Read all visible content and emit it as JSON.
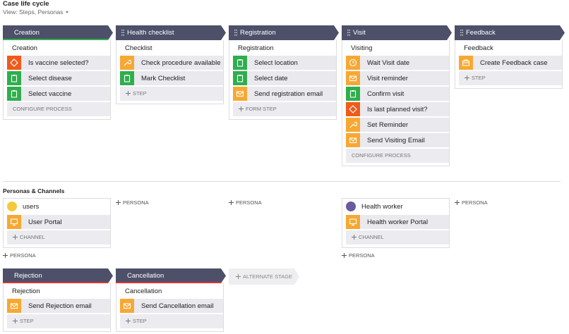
{
  "header": {
    "title": "Case life cycle",
    "view": "View: Steps, Personas"
  },
  "stages": [
    {
      "name": "Creation",
      "active": true,
      "process": "Creation",
      "steps": [
        {
          "label": "Is vaccine selected?",
          "icon": "diamond"
        },
        {
          "label": "Select disease",
          "icon": "clipboard"
        },
        {
          "label": "Select vaccine",
          "icon": "clipboard"
        }
      ],
      "action": "CONFIGURE PROCESS"
    },
    {
      "name": "Health checklist",
      "active": false,
      "process": "Checklist",
      "steps": [
        {
          "label": "Check procedure available",
          "icon": "wrench"
        },
        {
          "label": "Mark Checklist",
          "icon": "clipboard"
        }
      ],
      "action": "STEP"
    },
    {
      "name": "Registration",
      "active": false,
      "process": "Registration",
      "steps": [
        {
          "label": "Select location",
          "icon": "clipboard"
        },
        {
          "label": "Select date",
          "icon": "clipboard"
        },
        {
          "label": "Send registration email",
          "icon": "mail"
        }
      ],
      "action": "FORM STEP"
    },
    {
      "name": "Visit",
      "active": false,
      "process": "Visiting",
      "steps": [
        {
          "label": "Wait Visit date",
          "icon": "clock"
        },
        {
          "label": "Visit reminder",
          "icon": "mail"
        },
        {
          "label": "Confirm visit",
          "icon": "clipboard"
        },
        {
          "label": "Is last planned visit?",
          "icon": "diamond"
        },
        {
          "label": "Set Reminder",
          "icon": "wrench"
        },
        {
          "label": "Send Visiting Email",
          "icon": "mail"
        }
      ],
      "action": "CONFIGURE PROCESS"
    },
    {
      "name": "Feedback",
      "active": false,
      "process": "Feedback",
      "steps": [
        {
          "label": "Create Feedback case",
          "icon": "case"
        }
      ],
      "action": "STEP"
    }
  ],
  "personas_title": "Personas & Channels",
  "persona_columns": [
    {
      "personas": [
        {
          "name": "users",
          "avatar": "yellow",
          "channels": [
            "User Portal"
          ]
        }
      ]
    },
    {
      "personas": []
    },
    {
      "personas": []
    },
    {
      "personas": [
        {
          "name": "Health worker",
          "avatar": "purple",
          "channels": [
            "Health worker Portal"
          ]
        }
      ]
    },
    {
      "personas": []
    }
  ],
  "add_channel": "CHANNEL",
  "add_persona": "PERSONA",
  "alternate_stages": [
    {
      "name": "Rejection",
      "process": "Rejection",
      "steps": [
        {
          "label": "Send Rejection email",
          "icon": "mail"
        }
      ],
      "action": "STEP"
    },
    {
      "name": "Cancellation",
      "process": "Cancellation",
      "steps": [
        {
          "label": "Send Cancellation email",
          "icon": "mail"
        }
      ],
      "action": "STEP"
    }
  ],
  "add_alternate_stage": "ALTERNATE STAGE"
}
